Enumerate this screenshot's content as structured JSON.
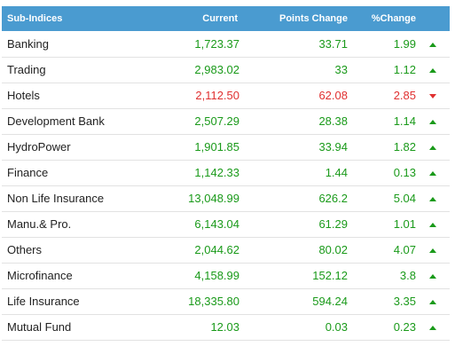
{
  "header": {
    "name": "Sub-Indices",
    "current": "Current",
    "points_change": "Points Change",
    "pct_change": "%Change"
  },
  "colors": {
    "header_bg": "#4a9bd0",
    "up": "#1a9a1a",
    "down": "#e03030"
  },
  "rows": [
    {
      "name": "Banking",
      "current": "1,723.37",
      "points": "33.71",
      "pct": "1.99",
      "trend": "up",
      "icon": "arrow-up-icon"
    },
    {
      "name": "Trading",
      "current": "2,983.02",
      "points": "33",
      "pct": "1.12",
      "trend": "up",
      "icon": "arrow-up-icon"
    },
    {
      "name": "Hotels",
      "current": "2,112.50",
      "points": "62.08",
      "pct": "2.85",
      "trend": "down",
      "icon": "arrow-down-icon"
    },
    {
      "name": "Development Bank",
      "current": "2,507.29",
      "points": "28.38",
      "pct": "1.14",
      "trend": "up",
      "icon": "arrow-up-icon"
    },
    {
      "name": "HydroPower",
      "current": "1,901.85",
      "points": "33.94",
      "pct": "1.82",
      "trend": "up",
      "icon": "arrow-up-icon"
    },
    {
      "name": "Finance",
      "current": "1,142.33",
      "points": "1.44",
      "pct": "0.13",
      "trend": "up",
      "icon": "arrow-up-icon"
    },
    {
      "name": "Non Life Insurance",
      "current": "13,048.99",
      "points": "626.2",
      "pct": "5.04",
      "trend": "up",
      "icon": "arrow-up-icon"
    },
    {
      "name": "Manu.& Pro.",
      "current": "6,143.04",
      "points": "61.29",
      "pct": "1.01",
      "trend": "up",
      "icon": "arrow-up-icon"
    },
    {
      "name": "Others",
      "current": "2,044.62",
      "points": "80.02",
      "pct": "4.07",
      "trend": "up",
      "icon": "arrow-up-icon"
    },
    {
      "name": "Microfinance",
      "current": "4,158.99",
      "points": "152.12",
      "pct": "3.8",
      "trend": "up",
      "icon": "arrow-up-icon"
    },
    {
      "name": "Life Insurance",
      "current": "18,335.80",
      "points": "594.24",
      "pct": "3.35",
      "trend": "up",
      "icon": "arrow-up-icon"
    },
    {
      "name": "Mutual Fund",
      "current": "12.03",
      "points": "0.03",
      "pct": "0.23",
      "trend": "up",
      "icon": "arrow-up-icon"
    }
  ]
}
